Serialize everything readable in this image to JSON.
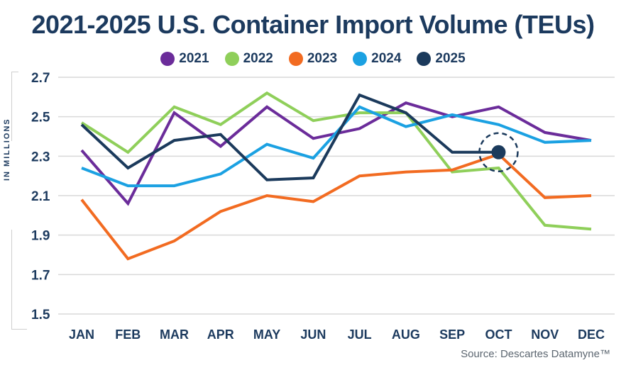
{
  "chart_data": {
    "type": "line",
    "title": "2021-2025 U.S. Container Import Volume (TEUs)",
    "xlabel": "",
    "ylabel": "IN MILLIONS",
    "ylim": [
      1.5,
      2.7
    ],
    "yticks": [
      "2.7",
      "2.5",
      "2.3",
      "2.1",
      "1.9",
      "1.7",
      "1.5"
    ],
    "ytick_values": [
      2.7,
      2.5,
      2.3,
      2.1,
      1.9,
      1.7,
      1.5
    ],
    "grid": true,
    "legend_position": "top-center",
    "categories": [
      "JAN",
      "FEB",
      "MAR",
      "APR",
      "MAY",
      "JUN",
      "JUL",
      "AUG",
      "SEP",
      "OCT",
      "NOV",
      "DEC"
    ],
    "series": [
      {
        "name": "2021",
        "color": "#6b2c9a",
        "values": [
          2.33,
          2.06,
          2.52,
          2.35,
          2.55,
          2.39,
          2.44,
          2.57,
          2.5,
          2.55,
          2.42,
          2.38
        ]
      },
      {
        "name": "2022",
        "color": "#8fcf5a",
        "values": [
          2.47,
          2.32,
          2.55,
          2.46,
          2.62,
          2.48,
          2.52,
          2.52,
          2.22,
          2.24,
          1.95,
          1.93
        ]
      },
      {
        "name": "2023",
        "color": "#f26b21",
        "values": [
          2.08,
          1.78,
          1.87,
          2.02,
          2.1,
          2.07,
          2.2,
          2.22,
          2.23,
          2.31,
          2.09,
          2.1
        ]
      },
      {
        "name": "2024",
        "color": "#1ba1e2",
        "values": [
          2.24,
          2.15,
          2.15,
          2.21,
          2.36,
          2.29,
          2.55,
          2.45,
          2.51,
          2.46,
          2.37,
          2.38
        ]
      },
      {
        "name": "2025",
        "color": "#1b3a5c",
        "values": [
          2.46,
          2.24,
          2.38,
          2.41,
          2.18,
          2.19,
          2.61,
          2.52,
          2.32,
          2.32,
          null,
          null
        ]
      }
    ],
    "annotation": {
      "series": "2025",
      "category": "OCT",
      "label": "latest data point (highlighted)"
    },
    "source": "Source: Descartes Datamyne™"
  },
  "ui": {
    "title": "2021-2025 U.S. Container Import Volume (TEUs)",
    "ylabel": "IN MILLIONS",
    "source": "Source: Descartes Datamyne™",
    "legend": [
      {
        "label": "2021",
        "color": "#6b2c9a"
      },
      {
        "label": "2022",
        "color": "#8fcf5a"
      },
      {
        "label": "2023",
        "color": "#f26b21"
      },
      {
        "label": "2024",
        "color": "#1ba1e2"
      },
      {
        "label": "2025",
        "color": "#1b3a5c"
      }
    ]
  }
}
